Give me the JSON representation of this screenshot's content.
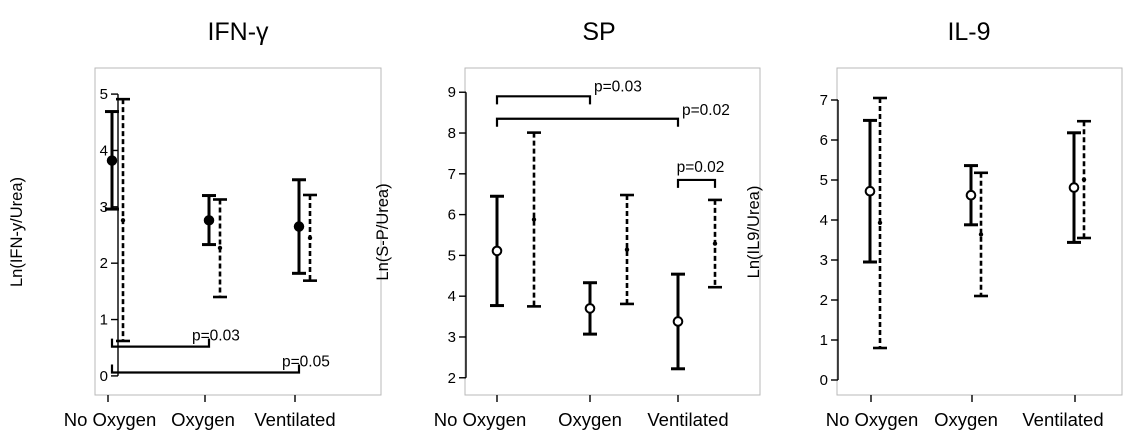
{
  "chart_data": [
    {
      "type": "errorbar",
      "title": "IFN-γ",
      "ylabel": "Ln(IFN-y/Urea)",
      "ylim": [
        -0.25,
        5.25
      ],
      "yticks": [
        0,
        1,
        2,
        3,
        4,
        5
      ],
      "categories": [
        "No Oxygen",
        "Oxygen",
        "Ventilated"
      ],
      "series": [
        {
          "style": "solid",
          "marker": "filled-circle",
          "points": [
            {
              "category": "No Oxygen",
              "center": 3.82,
              "low": 2.96,
              "high": 4.69
            },
            {
              "category": "Oxygen",
              "center": 2.76,
              "low": 2.33,
              "high": 3.2
            },
            {
              "category": "Ventilated",
              "center": 2.65,
              "low": 1.82,
              "high": 3.48
            }
          ]
        },
        {
          "style": "dashed",
          "marker": "none",
          "points": [
            {
              "category": "No Oxygen",
              "center": 2.76,
              "low": 0.62,
              "high": 4.91
            },
            {
              "category": "Oxygen",
              "center": 2.27,
              "low": 1.4,
              "high": 3.13
            },
            {
              "category": "Ventilated",
              "center": 2.45,
              "low": 1.69,
              "high": 3.21
            }
          ]
        }
      ],
      "annotations": [
        {
          "text": "p=0.03",
          "from": "No Oxygen",
          "to": "Oxygen",
          "y": 0.52
        },
        {
          "text": "p=0.05",
          "from": "No Oxygen",
          "to": "Ventilated",
          "y": 0.06
        }
      ]
    },
    {
      "type": "errorbar",
      "title": "SP",
      "ylabel": "Ln(S-P/Urea)",
      "ylim": [
        1.7,
        9.3
      ],
      "yticks": [
        2,
        3,
        4,
        5,
        6,
        7,
        8,
        9
      ],
      "categories": [
        "No Oxygen",
        "Oxygen",
        "Ventilated"
      ],
      "series": [
        {
          "style": "solid",
          "marker": "open-circle",
          "points": [
            {
              "category": "No Oxygen",
              "center": 5.11,
              "low": 3.77,
              "high": 6.45
            },
            {
              "category": "Oxygen",
              "center": 3.7,
              "low": 3.07,
              "high": 4.33
            },
            {
              "category": "Ventilated",
              "center": 3.38,
              "low": 2.22,
              "high": 4.54
            }
          ]
        },
        {
          "style": "dashed",
          "marker": "none",
          "points": [
            {
              "category": "No Oxygen",
              "center": 5.88,
              "low": 3.75,
              "high": 8.01
            },
            {
              "category": "Oxygen",
              "center": 5.14,
              "low": 3.81,
              "high": 6.48
            },
            {
              "category": "Ventilated",
              "center": 5.29,
              "low": 4.22,
              "high": 6.36
            }
          ]
        }
      ],
      "annotations": [
        {
          "text": "p=0.03",
          "from": "No Oxygen",
          "to": "Oxygen",
          "y": 8.9
        },
        {
          "text": "p=0.02",
          "from": "No Oxygen",
          "to": "Ventilated",
          "y": 8.35
        },
        {
          "text": "p=0.02",
          "from": "Ventilated",
          "to": "Ventilated-dashed",
          "y": 6.85
        }
      ]
    },
    {
      "type": "errorbar",
      "title": "IL-9",
      "ylabel": "Ln(IL9/Urea)",
      "ylim": [
        -0.25,
        7.5
      ],
      "yticks": [
        0,
        1,
        2,
        3,
        4,
        5,
        6,
        7
      ],
      "categories": [
        "No Oxygen",
        "Oxygen",
        "Ventilated"
      ],
      "series": [
        {
          "style": "solid",
          "marker": "open-circle",
          "points": [
            {
              "category": "No Oxygen",
              "center": 4.72,
              "low": 2.95,
              "high": 6.49
            },
            {
              "category": "Oxygen",
              "center": 4.62,
              "low": 3.88,
              "high": 5.36
            },
            {
              "category": "Ventilated",
              "center": 4.81,
              "low": 3.44,
              "high": 6.18
            }
          ]
        },
        {
          "style": "dashed",
          "marker": "none",
          "points": [
            {
              "category": "No Oxygen",
              "center": 3.93,
              "low": 0.8,
              "high": 7.05
            },
            {
              "category": "Oxygen",
              "center": 3.64,
              "low": 2.1,
              "high": 5.18
            },
            {
              "category": "Ventilated",
              "center": 5.01,
              "low": 3.55,
              "high": 6.47
            }
          ]
        }
      ],
      "annotations": []
    }
  ]
}
